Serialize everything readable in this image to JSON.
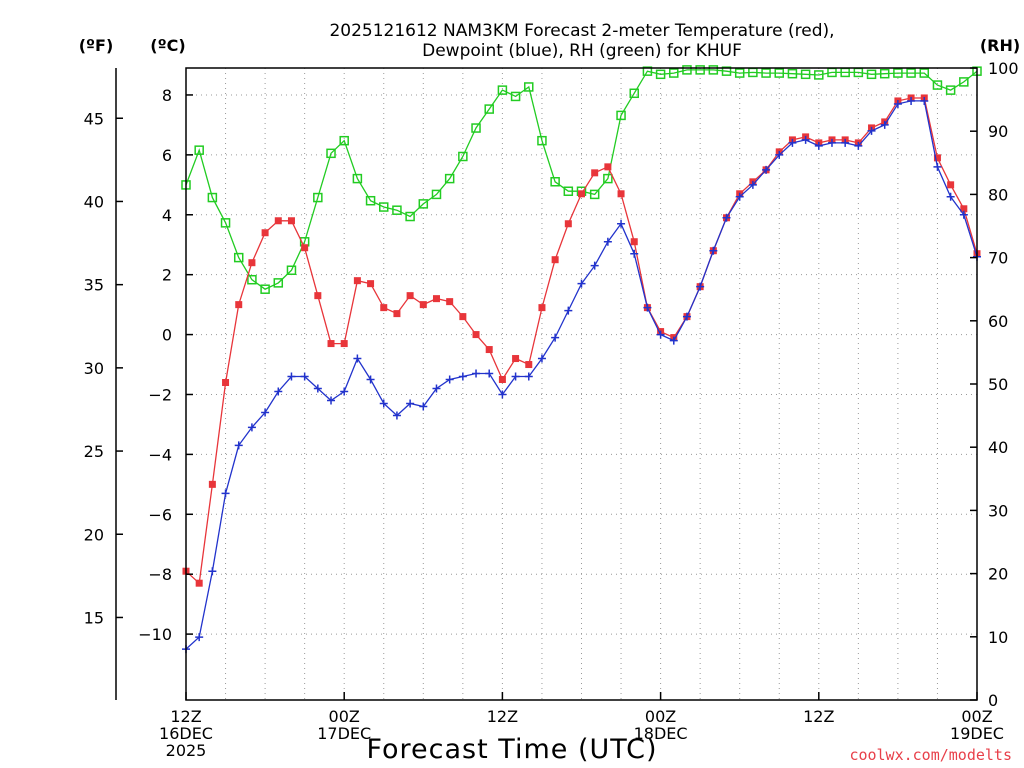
{
  "colors": {
    "temp": "#e8353a",
    "dewp": "#2233cc",
    "rh": "#22cc22",
    "grid": "#9a9a9a"
  },
  "chart_data": {
    "type": "line",
    "title": [
      "2025121612 NAM3KM Forecast 2-meter Temperature (red),",
      "Dewpoint (blue), RH (green) for KHUF"
    ],
    "xlabel": "Forecast Time (UTC)",
    "xlim": [
      0,
      60
    ],
    "x_ticks": [
      {
        "x": 0,
        "lines": [
          "12Z",
          "16DEC",
          "2025"
        ]
      },
      {
        "x": 12,
        "lines": [
          "00Z",
          "17DEC"
        ]
      },
      {
        "x": 24,
        "lines": [
          "12Z"
        ]
      },
      {
        "x": 36,
        "lines": [
          "00Z",
          "18DEC"
        ]
      },
      {
        "x": 48,
        "lines": [
          "12Z"
        ]
      },
      {
        "x": 60,
        "lines": [
          "00Z",
          "19DEC"
        ]
      }
    ],
    "y_left_c": {
      "label": "(ºC)",
      "lim": [
        -12.2,
        8.9
      ],
      "ticks": [
        -10,
        -8,
        -6,
        -4,
        -2,
        0,
        2,
        4,
        6,
        8
      ],
      "tick_labels": [
        "−10",
        "−8",
        "−6",
        "−4",
        "−2",
        "0",
        "2",
        "4",
        "6",
        "8"
      ]
    },
    "y_left_f": {
      "label": "(ºF)",
      "ticks": [
        15,
        20,
        25,
        30,
        35,
        40,
        45
      ],
      "tick_labels": [
        "15",
        "20",
        "25",
        "30",
        "35",
        "40",
        "45"
      ]
    },
    "y_right_rh": {
      "label": "(RH)",
      "lim": [
        0,
        100
      ],
      "ticks": [
        0,
        10,
        20,
        30,
        40,
        50,
        60,
        70,
        80,
        90,
        100
      ],
      "tick_labels": [
        "0",
        "10",
        "20",
        "30",
        "40",
        "50",
        "60",
        "70",
        "80",
        "90",
        "100"
      ]
    },
    "series": [
      {
        "name": "Temperature (red)",
        "axis": "C",
        "x": [
          0,
          1,
          2,
          3,
          4,
          5,
          6,
          7,
          8,
          9,
          10,
          11,
          12,
          13,
          14,
          15,
          16,
          17,
          18,
          19,
          20,
          21,
          22,
          23,
          24,
          25,
          26,
          27,
          28,
          29,
          30,
          31,
          32,
          33,
          34,
          35,
          36,
          37,
          38,
          39,
          40,
          41,
          42,
          43,
          44,
          45,
          46,
          47,
          48,
          49,
          50,
          51,
          52,
          53,
          54,
          55,
          56,
          57,
          58,
          59,
          60
        ],
        "values": [
          -7.9,
          -8.3,
          -5.0,
          -1.6,
          1.0,
          2.4,
          3.4,
          3.8,
          3.8,
          2.9,
          1.3,
          -0.3,
          -0.3,
          1.8,
          1.7,
          0.9,
          0.7,
          1.3,
          1.0,
          1.2,
          1.1,
          0.6,
          0.0,
          -0.5,
          -1.5,
          -0.8,
          -1.0,
          0.9,
          2.5,
          3.7,
          4.7,
          5.4,
          5.6,
          4.7,
          3.1,
          0.9,
          0.1,
          -0.1,
          0.6,
          1.6,
          2.8,
          3.9,
          4.7,
          5.1,
          5.5,
          6.1,
          6.5,
          6.6,
          6.4,
          6.5,
          6.5,
          6.4,
          6.9,
          7.1,
          7.8,
          7.9,
          7.9,
          5.9,
          5.0,
          4.2,
          2.7
        ]
      },
      {
        "name": "Dewpoint (blue)",
        "axis": "C",
        "x": [
          0,
          1,
          2,
          3,
          4,
          5,
          6,
          7,
          8,
          9,
          10,
          11,
          12,
          13,
          14,
          15,
          16,
          17,
          18,
          19,
          20,
          21,
          22,
          23,
          24,
          25,
          26,
          27,
          28,
          29,
          30,
          31,
          32,
          33,
          34,
          35,
          36,
          37,
          38,
          39,
          40,
          41,
          42,
          43,
          44,
          45,
          46,
          47,
          48,
          49,
          50,
          51,
          52,
          53,
          54,
          55,
          56,
          57,
          58,
          59,
          60
        ],
        "values": [
          -10.5,
          -10.1,
          -7.9,
          -5.3,
          -3.7,
          -3.1,
          -2.6,
          -1.9,
          -1.4,
          -1.4,
          -1.8,
          -2.2,
          -1.9,
          -0.8,
          -1.5,
          -2.3,
          -2.7,
          -2.3,
          -2.4,
          -1.8,
          -1.5,
          -1.4,
          -1.3,
          -1.3,
          -2.0,
          -1.4,
          -1.4,
          -0.8,
          -0.1,
          0.8,
          1.7,
          2.3,
          3.1,
          3.7,
          2.7,
          0.9,
          0.0,
          -0.2,
          0.6,
          1.6,
          2.8,
          3.9,
          4.6,
          5.0,
          5.5,
          6.0,
          6.4,
          6.5,
          6.3,
          6.4,
          6.4,
          6.3,
          6.8,
          7.0,
          7.7,
          7.8,
          7.8,
          5.6,
          4.6,
          4.0,
          2.6
        ]
      },
      {
        "name": "RH (green)",
        "axis": "RH",
        "x": [
          0,
          1,
          2,
          3,
          4,
          5,
          6,
          7,
          8,
          9,
          10,
          11,
          12,
          13,
          14,
          15,
          16,
          17,
          18,
          19,
          20,
          21,
          22,
          23,
          24,
          25,
          26,
          27,
          28,
          29,
          30,
          31,
          32,
          33,
          34,
          35,
          36,
          37,
          38,
          39,
          40,
          41,
          42,
          43,
          44,
          45,
          46,
          47,
          48,
          49,
          50,
          51,
          52,
          53,
          54,
          55,
          56,
          57,
          58,
          59,
          60
        ],
        "values": [
          81.5,
          87.0,
          79.5,
          75.5,
          70.0,
          66.5,
          65.0,
          66.0,
          68.0,
          72.5,
          79.5,
          86.5,
          88.5,
          82.5,
          79.0,
          78.0,
          77.5,
          76.5,
          78.5,
          80.0,
          82.5,
          86.0,
          90.5,
          93.5,
          96.5,
          95.5,
          97.0,
          88.5,
          82.0,
          80.5,
          80.5,
          80.0,
          82.5,
          92.5,
          96.0,
          99.5,
          99.0,
          99.2,
          99.7,
          99.7,
          99.7,
          99.5,
          99.2,
          99.3,
          99.2,
          99.2,
          99.1,
          99.0,
          98.9,
          99.3,
          99.3,
          99.3,
          99.0,
          99.1,
          99.2,
          99.2,
          99.2,
          97.3,
          96.5,
          97.8,
          99.5
        ]
      }
    ]
  },
  "credit": "coolwx.com/modelts"
}
